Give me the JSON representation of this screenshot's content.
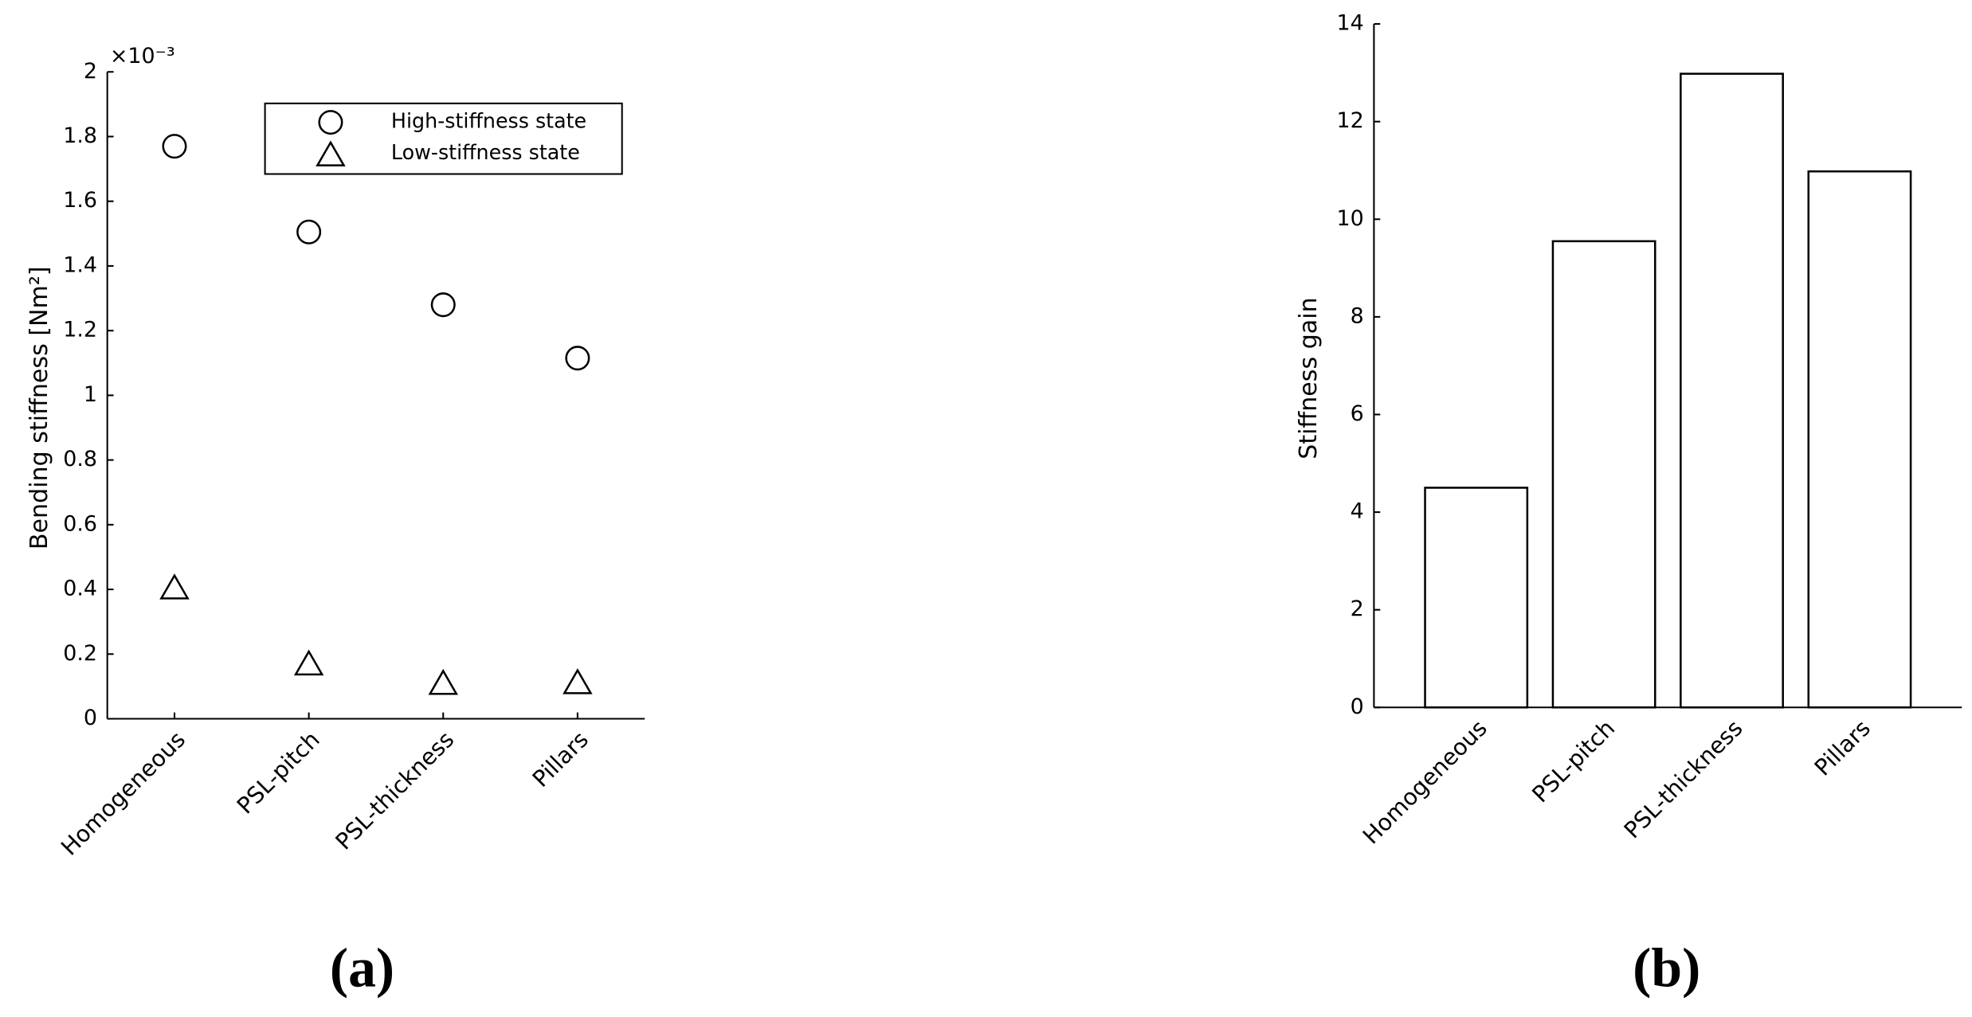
{
  "chart_data": [
    {
      "type": "scatter",
      "panel_label": "(a)",
      "y_label": "Bending stiffness [Nm²]",
      "y_multiplier": "×10⁻³",
      "categories": [
        "Homogeneous",
        "PSL-pitch",
        "PSL-thickness",
        "Pillars"
      ],
      "series": [
        {
          "name": "High-stiffness state",
          "marker": "circle",
          "color": "#000000",
          "values": [
            1.77,
            1.505,
            1.28,
            1.115
          ]
        },
        {
          "name": "Low-stiffness state",
          "marker": "triangle",
          "color": "#000000",
          "values": [
            0.4,
            0.165,
            0.105,
            0.107
          ]
        }
      ],
      "ylim": [
        0,
        2
      ],
      "yticks": [
        0,
        0.2,
        0.4,
        0.6,
        0.8,
        1,
        1.2,
        1.4,
        1.6,
        1.8,
        2
      ],
      "legend": "upper right"
    },
    {
      "type": "bar",
      "panel_label": "(b)",
      "y_label": "Stiffness gain",
      "categories": [
        "Homogeneous",
        "PSL-pitch",
        "PSL-thickness",
        "Pillars"
      ],
      "values": [
        4.5,
        9.55,
        12.98,
        10.98
      ],
      "color": "#ffffff",
      "edge_color": "#000000",
      "ylim": [
        0,
        14
      ],
      "yticks": [
        0,
        2,
        4,
        6,
        8,
        10,
        12,
        14
      ]
    }
  ]
}
